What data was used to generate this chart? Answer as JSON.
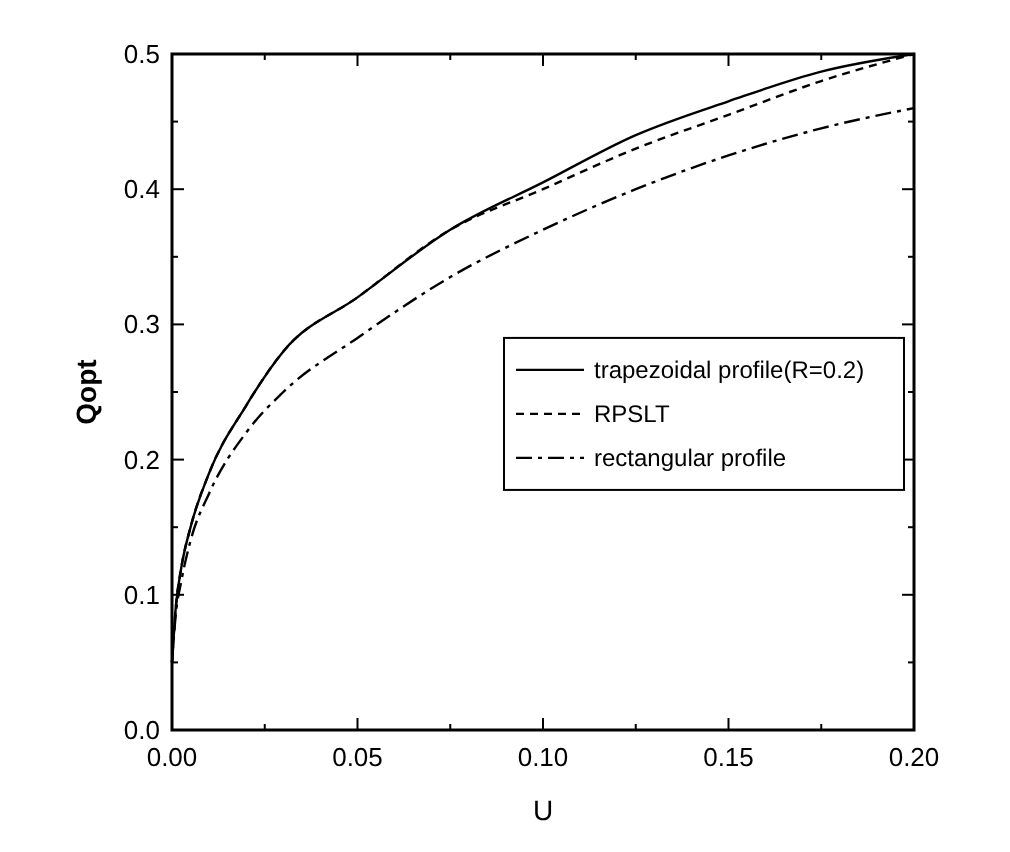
{
  "chart_data": {
    "type": "line",
    "xlabel": "U",
    "ylabel": "Qopt",
    "xlim": [
      0,
      0.2
    ],
    "ylim": [
      0,
      0.5
    ],
    "xticks": [
      {
        "value": 0,
        "label": "0.00"
      },
      {
        "value": 0.025,
        "label": null
      },
      {
        "value": 0.05,
        "label": "0.05"
      },
      {
        "value": 0.075,
        "label": null
      },
      {
        "value": 0.1,
        "label": "0.10"
      },
      {
        "value": 0.125,
        "label": null
      },
      {
        "value": 0.15,
        "label": "0.15"
      },
      {
        "value": 0.175,
        "label": null
      },
      {
        "value": 0.2,
        "label": "0.20"
      }
    ],
    "yticks": [
      {
        "value": 0,
        "label": "0.0"
      },
      {
        "value": 0.05,
        "label": null
      },
      {
        "value": 0.1,
        "label": "0.1"
      },
      {
        "value": 0.15,
        "label": null
      },
      {
        "value": 0.2,
        "label": "0.2"
      },
      {
        "value": 0.25,
        "label": null
      },
      {
        "value": 0.3,
        "label": "0.3"
      },
      {
        "value": 0.35,
        "label": null
      },
      {
        "value": 0.4,
        "label": "0.4"
      },
      {
        "value": 0.45,
        "label": null
      },
      {
        "value": 0.5,
        "label": "0.5"
      }
    ],
    "x": [
      0,
      0.001,
      0.0025,
      0.005,
      0.01,
      0.02,
      0.03,
      0.05,
      0.075,
      0.1,
      0.125,
      0.15,
      0.175,
      0.2
    ],
    "grid": false,
    "legend": "right",
    "marker": "none",
    "series": [
      {
        "name": "trapezoidal profile(R=0.2)",
        "color": "#000000",
        "line_style": "solid",
        "values": [
          0.05,
          0.09,
          0.12,
          0.15,
          0.19,
          0.24,
          0.28,
          0.32,
          0.37,
          0.405,
          0.44,
          0.465,
          0.487,
          0.5
        ]
      },
      {
        "name": "RPSLT",
        "color": "#000000",
        "line_style": "dashed",
        "values": [
          0.05,
          0.09,
          0.12,
          0.15,
          0.19,
          0.24,
          0.28,
          0.32,
          0.37,
          0.4,
          0.43,
          0.455,
          0.48,
          0.5
        ]
      },
      {
        "name": "rectangular profile",
        "color": "#000000",
        "line_style": "dashdot",
        "values": [
          0.05,
          0.085,
          0.11,
          0.14,
          0.175,
          0.22,
          0.25,
          0.29,
          0.335,
          0.37,
          0.4,
          0.425,
          0.445,
          0.46
        ]
      }
    ]
  }
}
